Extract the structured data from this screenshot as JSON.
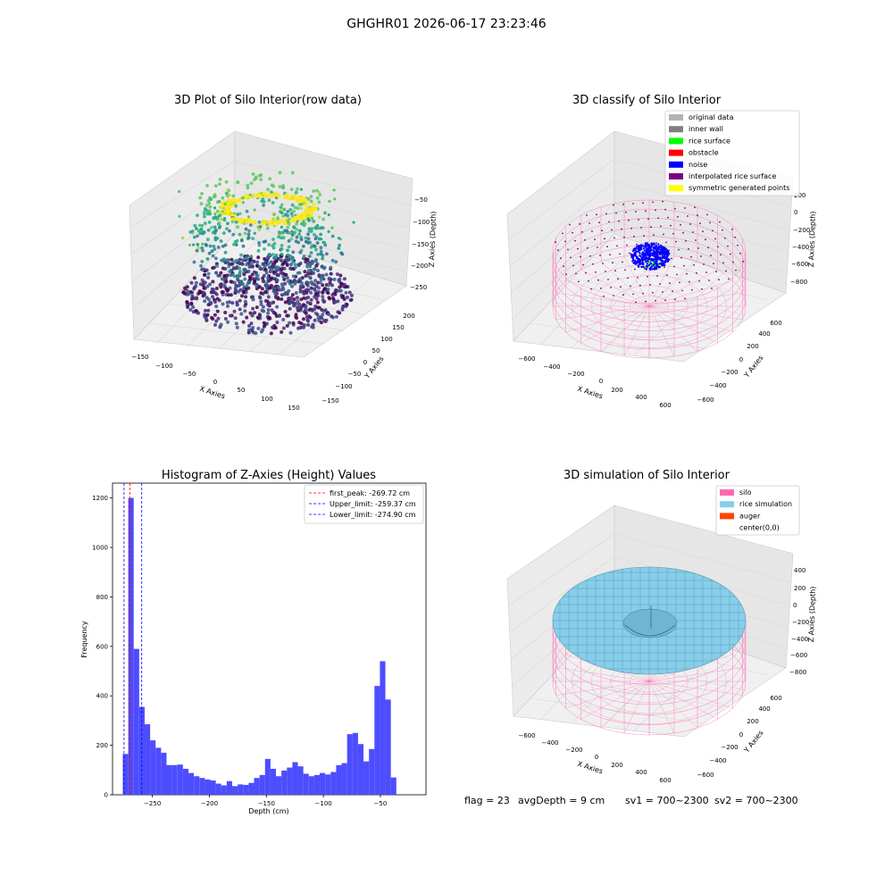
{
  "suptitle": "GHGHR01 2026-06-17 23:23:46",
  "status": {
    "flag": "flag = 23",
    "avg_depth": "avgDepth = 9 cm",
    "sv1": "sv1 = 700~2300",
    "sv2": "sv2 = 700~2300"
  },
  "chart_data": [
    {
      "type": "scatter",
      "title": "3D Plot of Silo Interior(row data)",
      "xlabel": "X Axies",
      "ylabel": "Y Axies",
      "zlabel": "Z Axies (Depth)",
      "xlim": [
        -150,
        150
      ],
      "ylim": [
        -150,
        200
      ],
      "zlim": [
        -300,
        -30
      ],
      "x_ticks": [
        "−150",
        "−100",
        "−50",
        "0",
        "50",
        "100",
        "150"
      ],
      "y_ticks": [
        "−150",
        "−100",
        "−50",
        "0",
        "50",
        "100",
        "150",
        "200"
      ],
      "z_ticks": [
        "−50",
        "−100",
        "−150",
        "−200",
        "−250"
      ],
      "colormap": "viridis"
    },
    {
      "type": "scatter",
      "title": "3D classify of Silo Interior",
      "xlabel": "X Axies",
      "ylabel": "Y Axies",
      "zlabel": "Z Axies (Depth)",
      "xlim": [
        -700,
        700
      ],
      "ylim": [
        -700,
        700
      ],
      "zlim": [
        -900,
        300
      ],
      "x_ticks": [
        "−600",
        "−400",
        "−200",
        "0",
        "200",
        "400",
        "600"
      ],
      "y_ticks": [
        "−600",
        "−400",
        "−200",
        "0",
        "200",
        "400",
        "600"
      ],
      "z_ticks": [
        "200",
        "0",
        "−200",
        "−400",
        "−600",
        "−800"
      ],
      "legend_position": "top-right",
      "legend": [
        {
          "label": "original data",
          "color": "#b3b3b3"
        },
        {
          "label": "inner wall",
          "color": "#808080"
        },
        {
          "label": "rice surface",
          "color": "#00ff00"
        },
        {
          "label": "obstacle",
          "color": "#ff0000"
        },
        {
          "label": "noise",
          "color": "#0000ff"
        },
        {
          "label": "interpolated rice surface",
          "color": "#800080"
        },
        {
          "label": "symmetric generated points",
          "color": "#ffff00"
        }
      ]
    },
    {
      "type": "bar",
      "title": "Histogram of Z-Axies (Height) Values",
      "xlabel": "Depth (cm)",
      "ylabel": "Frequency",
      "xlim": [
        -285,
        -10
      ],
      "ylim": [
        0,
        1260
      ],
      "bin_width": 4.8,
      "bin_start": -276,
      "bar_color": "#4d4dff",
      "x_ticks": [
        -250,
        -200,
        -150,
        -100,
        -50
      ],
      "x_tick_labels": [
        "−250",
        "−200",
        "−150",
        "−100",
        "−50"
      ],
      "y_ticks": [
        0,
        200,
        400,
        600,
        800,
        1000,
        1200
      ],
      "y_tick_labels": [
        "0",
        "200",
        "400",
        "600",
        "800",
        "1000",
        "1200"
      ],
      "values": [
        165,
        1200,
        590,
        355,
        285,
        220,
        190,
        170,
        120,
        120,
        122,
        105,
        88,
        75,
        68,
        62,
        58,
        45,
        38,
        55,
        35,
        42,
        40,
        48,
        68,
        80,
        145,
        105,
        75,
        98,
        110,
        132,
        115,
        85,
        75,
        80,
        88,
        82,
        92,
        120,
        128,
        245,
        250,
        205,
        135,
        185,
        440,
        540,
        385,
        70
      ],
      "legend_position": "top-right",
      "vlines": [
        {
          "label": "first_peak: -269.72 cm",
          "x": -269.72,
          "color": "#ff0000"
        },
        {
          "label": "Upper_limit: -259.37 cm",
          "x": -259.37,
          "color": "#0000ff"
        },
        {
          "label": "Lower_limit: -274.90 cm",
          "x": -274.9,
          "color": "#0000ff"
        }
      ]
    },
    {
      "type": "area",
      "title": "3D simulation of Silo Interior",
      "xlabel": "X Axies",
      "ylabel": "Y Axies",
      "zlabel": "Z Axies (Depth)",
      "xlim": [
        -700,
        700
      ],
      "ylim": [
        -700,
        700
      ],
      "zlim": [
        -900,
        500
      ],
      "x_ticks": [
        "−600",
        "−400",
        "−200",
        "0",
        "200",
        "400",
        "600"
      ],
      "y_ticks": [
        "−600",
        "−400",
        "−200",
        "0",
        "200",
        "400",
        "600"
      ],
      "z_ticks": [
        "400",
        "200",
        "0",
        "−200",
        "−400",
        "−600",
        "−800"
      ],
      "legend_position": "top-right",
      "legend": [
        {
          "label": "silo",
          "color": "#ff69b4"
        },
        {
          "label": "rice simulation",
          "color": "#87ceeb"
        },
        {
          "label": "auger",
          "color": "#ff4500"
        },
        {
          "label": "center(0,0)",
          "color": ""
        }
      ]
    }
  ]
}
